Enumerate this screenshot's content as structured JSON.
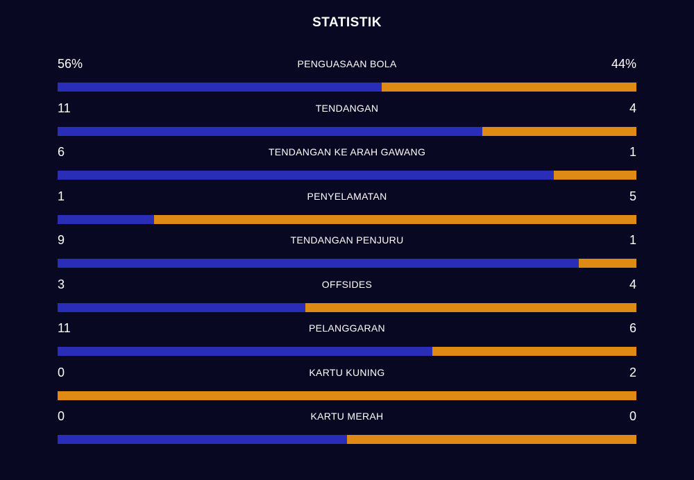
{
  "title": "STATISTIK",
  "colors": {
    "background": "#080822",
    "home": "#2a2db8",
    "away": "#e08a16",
    "text": "#ffffff"
  },
  "chart_data": {
    "type": "bar",
    "orientation": "horizontal-stacked",
    "title": "STATISTIK",
    "categories": [
      "PENGUASAAN BOLA",
      "TENDANGAN",
      "TENDANGAN KE ARAH GAWANG",
      "PENYELAMATAN",
      "TENDANGAN PENJURU",
      "OFFSIDES",
      "PELANGGARAN",
      "KARTU KUNING",
      "KARTU MERAH"
    ],
    "rows": [
      {
        "label": "PENGUASAAN BOLA",
        "home": 56,
        "away": 44,
        "home_display": "56%",
        "away_display": "44%"
      },
      {
        "label": "TENDANGAN",
        "home": 11,
        "away": 4,
        "home_display": "11",
        "away_display": "4"
      },
      {
        "label": "TENDANGAN KE ARAH GAWANG",
        "home": 6,
        "away": 1,
        "home_display": "6",
        "away_display": "1"
      },
      {
        "label": "PENYELAMATAN",
        "home": 1,
        "away": 5,
        "home_display": "1",
        "away_display": "5"
      },
      {
        "label": "TENDANGAN PENJURU",
        "home": 9,
        "away": 1,
        "home_display": "9",
        "away_display": "1"
      },
      {
        "label": "OFFSIDES",
        "home": 3,
        "away": 4,
        "home_display": "3",
        "away_display": "4"
      },
      {
        "label": "PELANGGARAN",
        "home": 11,
        "away": 6,
        "home_display": "11",
        "away_display": "6"
      },
      {
        "label": "KARTU KUNING",
        "home": 0,
        "away": 2,
        "home_display": "0",
        "away_display": "2"
      },
      {
        "label": "KARTU MERAH",
        "home": 0,
        "away": 0,
        "home_display": "0",
        "away_display": "0"
      }
    ]
  }
}
